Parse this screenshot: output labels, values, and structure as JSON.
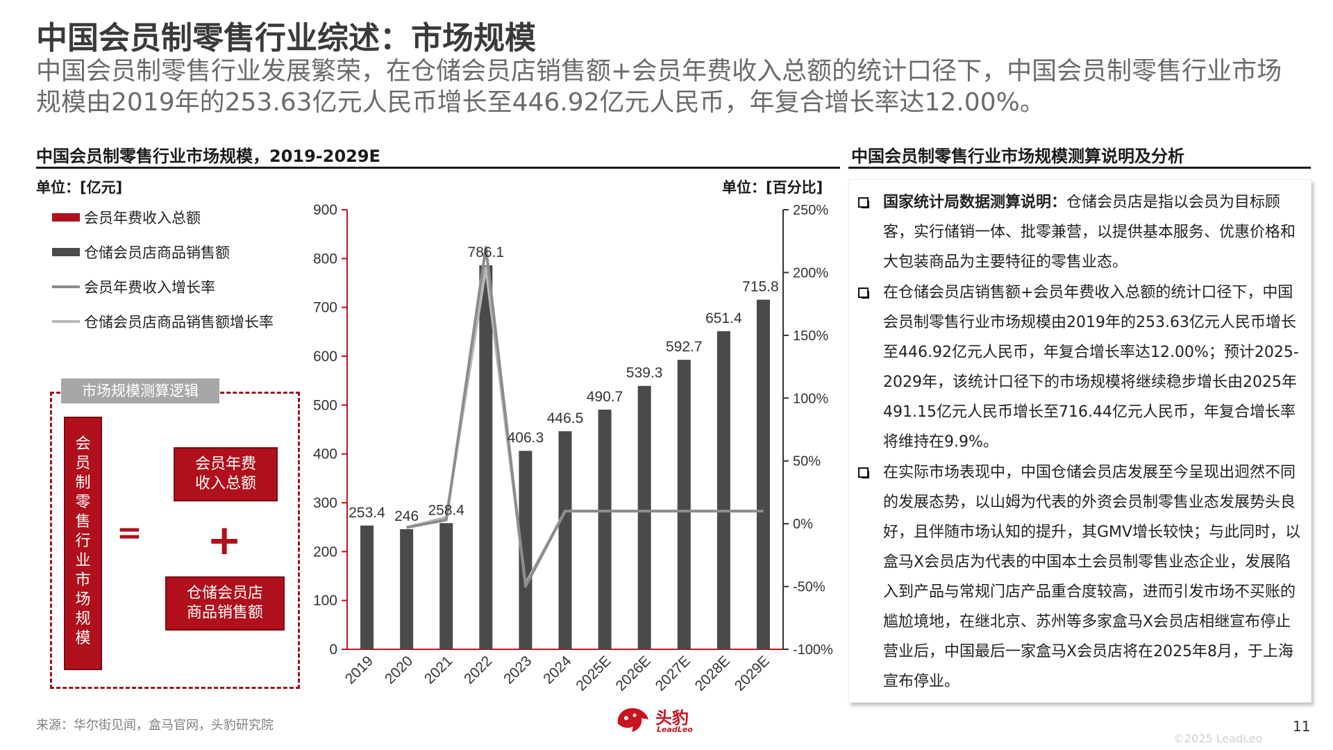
{
  "page": {
    "title": "中国会员制零售行业综述：市场规模",
    "subtitle": "中国会员制零售行业发展繁荣，在仓储会员店销售额+会员年费收入总额的统计口径下，中国会员制零售行业市场规模由2019年的253.63亿元人民币增长至446.92亿元人民币，年复合增长率达12.00%。",
    "source": "来源：华尔街见闻，盒马官网，头豹研究院",
    "page_number": "11",
    "copyright": "©2025 LeadLeo",
    "logo_name": "头豹",
    "logo_sub": "LeadLeo"
  },
  "left_panel": {
    "section_title": "中国会员制零售行业市场规模，2019-2029E",
    "unit_left": "单位：[亿元]",
    "unit_right": "单位：[百分比]"
  },
  "right_panel": {
    "section_title": "中国会员制零售行业市场规模测算说明及分析",
    "notes": [
      {
        "bold": "国家统计局数据测算说明：",
        "text": "仓储会员店是指以会员为目标顾客，实行储销一体、批零兼营，以提供基本服务、优惠价格和大包装商品为主要特征的零售业态。"
      },
      {
        "bold": "",
        "text": "在仓储会员店销售额+会员年费收入总额的统计口径下，中国会员制零售行业市场规模由2019年的253.63亿元人民币增长至446.92亿元人民币，年复合增长率达12.00%；预计2025-2029年，该统计口径下的市场规模将继续稳步增长由2025年491.15亿元人民币增长至716.44亿元人民币，年复合增长率将维持在9.9%。"
      },
      {
        "bold": "",
        "text": "在实际市场表现中，中国仓储会员店发展至今呈现出迥然不同的发展态势，以山姆为代表的外资会员制零售业态发展势头良好，且伴随市场认知的提升，其GMV增长较快；与此同时，以盒马X会员店为代表的中国本土会员制零售业态企业，发展陷入到产品与常规门店产品重合度较高，进而引发市场不买账的尴尬境地，在继北京、苏州等多家盒马X会员店相继宣布停止营业后，中国最后一家盒马X会员店将在2025年8月，于上海宣布停业。"
      }
    ]
  },
  "logic": {
    "title": "市场规模测算逻辑",
    "left_label": "会员制零售行业市场规模",
    "eq": "=",
    "plus": "+",
    "box1": "会员年费收入总额",
    "box2": "仓储会员店商品销售额"
  },
  "chart_data": {
    "type": "bar",
    "categories": [
      "2019",
      "2020",
      "2021",
      "2022",
      "2023",
      "2024",
      "2025E",
      "2026E",
      "2027E",
      "2028E",
      "2029E"
    ],
    "series": [
      {
        "name": "会员年费收入总额",
        "type": "bar",
        "axis": "left",
        "color": "#b0101b",
        "values": [
          0.2,
          0.2,
          0.2,
          0.2,
          0.2,
          0.2,
          0.2,
          0.2,
          0.2,
          0.2,
          0.2
        ]
      },
      {
        "name": "仓储会员店商品销售额",
        "type": "bar",
        "axis": "left",
        "color": "#4a4a4a",
        "values": [
          253.4,
          246,
          258.4,
          786.1,
          406.3,
          446.5,
          490.7,
          539.3,
          592.7,
          651.4,
          715.8
        ]
      },
      {
        "name": "会员年费收入增长率",
        "type": "line",
        "axis": "right",
        "color": "#8c8c8c",
        "values": [
          null,
          -3,
          3,
          220,
          -50,
          10,
          10,
          10,
          10,
          10,
          10
        ]
      },
      {
        "name": "仓储会员店商品销售额增长率",
        "type": "line",
        "axis": "right",
        "color": "#b8b8b8",
        "values": [
          null,
          -3,
          5,
          204,
          -48,
          10,
          10,
          10,
          10,
          10,
          10
        ]
      }
    ],
    "data_labels": [
      "253.4",
      "246",
      "258.4",
      "786.1",
      "406.3",
      "446.5",
      "490.7",
      "539.3",
      "592.7",
      "651.4",
      "715.8"
    ],
    "ylim": [
      0,
      900
    ],
    "yticks": [
      "0",
      "100",
      "200",
      "300",
      "400",
      "500",
      "600",
      "700",
      "800",
      "900"
    ],
    "y2lim": [
      -100,
      250
    ],
    "y2ticks": [
      "-100%",
      "-50%",
      "0%",
      "50%",
      "100%",
      "150%",
      "200%",
      "250%"
    ],
    "grid": false,
    "legend": "top-left"
  }
}
